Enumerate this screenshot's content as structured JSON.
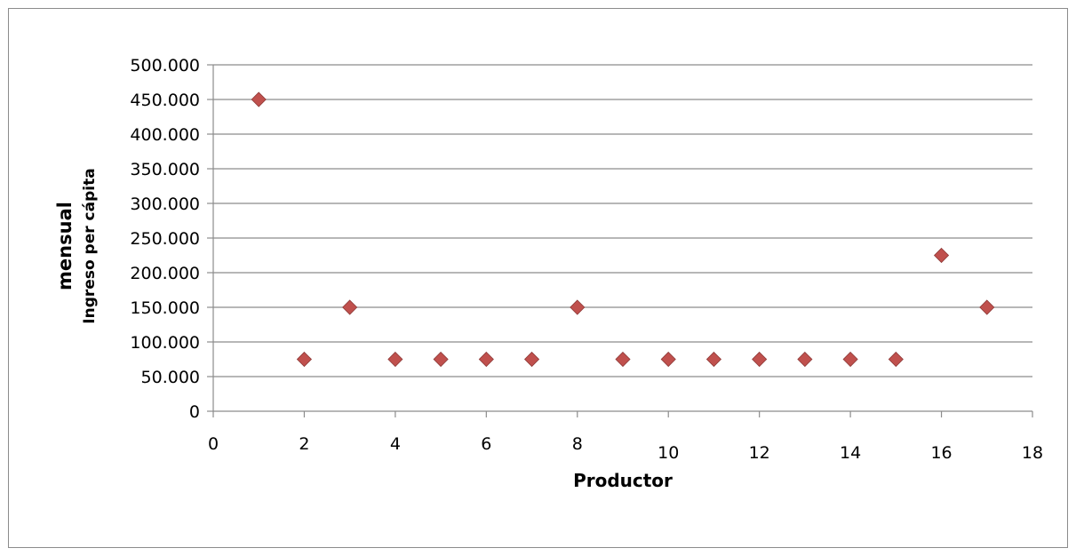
{
  "chart_data": {
    "type": "scatter",
    "title": "",
    "xlabel": "Productor",
    "ylabel_line1": "mensual",
    "ylabel_line2": "Ingreso per cápita",
    "xlim": [
      0,
      18
    ],
    "ylim": [
      0,
      500000
    ],
    "x_ticks": [
      {
        "value": 0,
        "label": "0"
      },
      {
        "value": 2,
        "label": "2"
      },
      {
        "value": 4,
        "label": "4"
      },
      {
        "value": 6,
        "label": "6"
      },
      {
        "value": 8,
        "label": "8"
      },
      {
        "value": 10,
        "label": "10"
      },
      {
        "value": 12,
        "label": "12"
      },
      {
        "value": 14,
        "label": "14"
      },
      {
        "value": 16,
        "label": "16"
      },
      {
        "value": 18,
        "label": "18"
      }
    ],
    "y_ticks": [
      {
        "value": 0,
        "label": "0"
      },
      {
        "value": 50000,
        "label": "50.000"
      },
      {
        "value": 100000,
        "label": "100.000"
      },
      {
        "value": 150000,
        "label": "150.000"
      },
      {
        "value": 200000,
        "label": "200.000"
      },
      {
        "value": 250000,
        "label": "250.000"
      },
      {
        "value": 300000,
        "label": "300.000"
      },
      {
        "value": 350000,
        "label": "350.000"
      },
      {
        "value": 400000,
        "label": "400.000"
      },
      {
        "value": 450000,
        "label": "450.000"
      },
      {
        "value": 500000,
        "label": "500.000"
      }
    ],
    "grid": "horizontal",
    "legend": "none",
    "marker": "diamond",
    "marker_color": "#c0504d",
    "marker_edge_color": "#8c3836",
    "gridline_color": "#8c8c8c",
    "x": [
      1,
      2,
      3,
      4,
      5,
      6,
      7,
      8,
      9,
      10,
      11,
      12,
      13,
      14,
      15,
      16,
      17
    ],
    "y": [
      450000,
      75000,
      150000,
      75000,
      75000,
      75000,
      75000,
      150000,
      75000,
      75000,
      75000,
      75000,
      75000,
      75000,
      75000,
      225000,
      150000
    ]
  }
}
